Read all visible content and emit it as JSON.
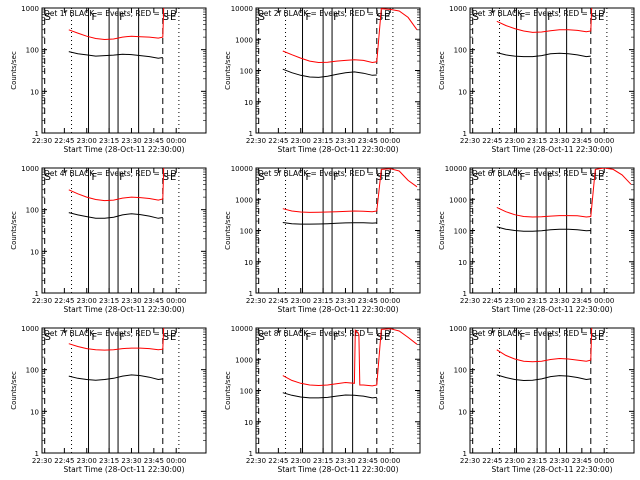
{
  "chart_data": {
    "type": "line",
    "x_tick_labels": [
      "22:30",
      "22:45",
      "23:00",
      "23:15",
      "23:30",
      "23:45",
      "00:00"
    ],
    "x_range_hours": [
      0,
      1.833
    ],
    "y_scale": "log",
    "y_range": [
      1,
      1000
    ],
    "y_tick_labels": [
      "1",
      "10",
      "100",
      "1000"
    ],
    "ylabel": "Counts/sec",
    "xlabel": "Start Time (28-Oct-11 22:30:00)",
    "series_colors": {
      "events": "#000000",
      "lld": "#ff0000"
    },
    "vline_styles": {
      "dashed": "#000000",
      "dotted": "#000000",
      "solid": "#000000"
    },
    "panels": [
      {
        "title": "Det 1f BLACK = Events, RED = LLD",
        "ylim": [
          1,
          1000
        ],
        "marks": {
          "S": 0.03,
          "F": [
            0.62,
            0.93
          ],
          "S2": 1.35,
          "E": 1.43
        },
        "vlines_dashed": [
          0.03,
          1.35
        ],
        "vlines_dotted": [
          0.33,
          1.53
        ],
        "vlines_solid": [
          0.52,
          0.75,
          0.85,
          1.08
        ],
        "events": {
          "x": [
            0.3,
            0.4,
            0.5,
            0.6,
            0.7,
            0.8,
            0.9,
            1.0,
            1.1,
            1.2,
            1.3,
            1.35
          ],
          "y": [
            90,
            80,
            75,
            70,
            72,
            74,
            78,
            76,
            72,
            68,
            62,
            65
          ]
        },
        "lld": {
          "x": [
            0.3,
            0.4,
            0.5,
            0.6,
            0.7,
            0.8,
            0.9,
            1.0,
            1.1,
            1.2,
            1.3,
            1.35,
            1.36
          ],
          "y": [
            300,
            250,
            210,
            185,
            175,
            180,
            200,
            210,
            205,
            200,
            190,
            200,
            1000
          ]
        }
      },
      {
        "title": "Det 2f BLACK = Events, RED = LLD",
        "ylim": [
          1,
          10000
        ],
        "marks": {
          "S": 0.03,
          "F": [
            0.62,
            0.93
          ],
          "S2": 1.35,
          "E": 1.43
        },
        "vlines_dashed": [
          0.03,
          1.35
        ],
        "vlines_dotted": [
          0.33,
          1.53
        ],
        "vlines_solid": [
          0.52,
          0.75,
          0.85,
          1.08
        ],
        "events": {
          "x": [
            0.3,
            0.4,
            0.5,
            0.6,
            0.7,
            0.8,
            0.9,
            1.0,
            1.1,
            1.2,
            1.3,
            1.35
          ],
          "y": [
            110,
            85,
            70,
            62,
            60,
            65,
            75,
            85,
            90,
            82,
            70,
            72
          ]
        },
        "lld": {
          "x": [
            0.3,
            0.4,
            0.5,
            0.6,
            0.7,
            0.8,
            0.9,
            1.0,
            1.1,
            1.2,
            1.3,
            1.35,
            1.4,
            1.5,
            1.6,
            1.7,
            1.8
          ],
          "y": [
            420,
            320,
            250,
            200,
            180,
            185,
            200,
            210,
            220,
            210,
            180,
            190,
            9500,
            9000,
            8000,
            5000,
            2000
          ]
        }
      },
      {
        "title": "Det 3f BLACK = Events, RED = LLD",
        "ylim": [
          1,
          1000
        ],
        "marks": {
          "S": 0.03,
          "F": [
            0.62,
            0.93
          ],
          "S2": 1.35,
          "E": 1.43
        },
        "vlines_dashed": [
          0.03,
          1.35
        ],
        "vlines_dotted": [
          0.33,
          1.53
        ],
        "vlines_solid": [
          0.52,
          0.75,
          0.85,
          1.08
        ],
        "events": {
          "x": [
            0.3,
            0.4,
            0.5,
            0.6,
            0.7,
            0.8,
            0.9,
            1.0,
            1.1,
            1.2,
            1.3,
            1.35
          ],
          "y": [
            85,
            75,
            70,
            68,
            68,
            72,
            80,
            82,
            80,
            75,
            68,
            70
          ]
        },
        "lld": {
          "x": [
            0.3,
            0.4,
            0.5,
            0.6,
            0.7,
            0.8,
            0.9,
            1.0,
            1.1,
            1.2,
            1.3,
            1.35,
            1.36
          ],
          "y": [
            480,
            380,
            320,
            280,
            260,
            265,
            285,
            300,
            300,
            290,
            270,
            280,
            1000
          ]
        }
      },
      {
        "title": "Det 4f BLACK = Events, RED = LLD",
        "ylim": [
          1,
          1000
        ],
        "marks": {
          "S": 0.03,
          "F": [
            0.62,
            0.93
          ],
          "S2": 1.35,
          "E": 1.43
        },
        "vlines_dashed": [
          0.03,
          1.35
        ],
        "vlines_dotted": [
          0.33,
          1.53
        ],
        "vlines_solid": [
          0.52,
          0.75,
          0.85,
          1.08
        ],
        "events": {
          "x": [
            0.3,
            0.4,
            0.5,
            0.6,
            0.7,
            0.8,
            0.9,
            1.0,
            1.1,
            1.2,
            1.3,
            1.35
          ],
          "y": [
            85,
            75,
            68,
            62,
            62,
            66,
            75,
            80,
            76,
            70,
            62,
            65
          ]
        },
        "lld": {
          "x": [
            0.3,
            0.4,
            0.5,
            0.6,
            0.7,
            0.8,
            0.9,
            1.0,
            1.1,
            1.2,
            1.3,
            1.35,
            1.36
          ],
          "y": [
            300,
            240,
            200,
            175,
            165,
            170,
            190,
            200,
            195,
            185,
            170,
            180,
            1000
          ]
        }
      },
      {
        "title": "Det 5f BLACK = Events, RED = LLD",
        "ylim": [
          1,
          10000
        ],
        "marks": {
          "S": 0.03,
          "F": [
            0.62,
            0.93
          ],
          "S2": 1.35,
          "E": 1.43
        },
        "vlines_dashed": [
          0.03,
          1.35
        ],
        "vlines_dotted": [
          0.33,
          1.53
        ],
        "vlines_solid": [
          0.52,
          0.75,
          0.85,
          1.08
        ],
        "events": {
          "x": [
            0.3,
            0.4,
            0.5,
            0.6,
            0.7,
            0.8,
            0.9,
            1.0,
            1.1,
            1.2,
            1.3,
            1.35
          ],
          "y": [
            180,
            165,
            160,
            160,
            162,
            165,
            170,
            175,
            178,
            176,
            172,
            175
          ]
        },
        "lld": {
          "x": [
            0.3,
            0.4,
            0.5,
            0.6,
            0.7,
            0.8,
            0.9,
            1.0,
            1.1,
            1.2,
            1.3,
            1.35,
            1.4,
            1.5,
            1.6,
            1.7,
            1.8
          ],
          "y": [
            500,
            420,
            390,
            380,
            385,
            390,
            400,
            410,
            420,
            415,
            400,
            420,
            9000,
            9500,
            8000,
            4000,
            2500
          ]
        }
      },
      {
        "title": "Det 6f BLACK = Events, RED = LLD",
        "ylim": [
          1,
          10000
        ],
        "marks": {
          "S": 0.03,
          "F": [
            0.62,
            0.93
          ],
          "S2": 1.35,
          "E": 1.43
        },
        "vlines_dashed": [
          0.03,
          1.35
        ],
        "vlines_dotted": [
          0.33,
          1.53
        ],
        "vlines_solid": [
          0.52,
          0.75,
          0.85,
          1.08
        ],
        "events": {
          "x": [
            0.3,
            0.4,
            0.5,
            0.6,
            0.7,
            0.8,
            0.9,
            1.0,
            1.1,
            1.2,
            1.3,
            1.35
          ],
          "y": [
            130,
            110,
            100,
            95,
            95,
            98,
            105,
            110,
            110,
            105,
            98,
            100
          ]
        },
        "lld": {
          "x": [
            0.3,
            0.4,
            0.5,
            0.6,
            0.7,
            0.8,
            0.9,
            1.0,
            1.1,
            1.2,
            1.3,
            1.35,
            1.4,
            1.5,
            1.6,
            1.7,
            1.8
          ],
          "y": [
            550,
            400,
            320,
            280,
            270,
            275,
            290,
            300,
            300,
            295,
            270,
            280,
            9000,
            10000,
            9000,
            6000,
            3000
          ]
        }
      },
      {
        "title": "Det 7f BLACK = Events, RED = LLD",
        "ylim": [
          1,
          1000
        ],
        "marks": {
          "S": 0.03,
          "F": [
            0.62,
            0.93
          ],
          "S2": 1.35,
          "E": 1.43
        },
        "vlines_dashed": [
          0.03,
          1.35
        ],
        "vlines_dotted": [
          0.33,
          1.53
        ],
        "vlines_solid": [
          0.52,
          0.75,
          0.85,
          1.08
        ],
        "events": {
          "x": [
            0.3,
            0.4,
            0.5,
            0.6,
            0.7,
            0.8,
            0.9,
            1.0,
            1.1,
            1.2,
            1.3,
            1.35
          ],
          "y": [
            70,
            62,
            58,
            56,
            58,
            62,
            70,
            75,
            72,
            66,
            58,
            60
          ]
        },
        "lld": {
          "x": [
            0.3,
            0.4,
            0.5,
            0.6,
            0.7,
            0.8,
            0.9,
            1.0,
            1.1,
            1.2,
            1.3,
            1.35,
            1.36
          ],
          "y": [
            420,
            360,
            320,
            300,
            295,
            300,
            320,
            330,
            330,
            320,
            300,
            310,
            1000
          ]
        }
      },
      {
        "title": "Det 8f BLACK = Events, RED = LLD",
        "ylim": [
          1,
          10000
        ],
        "marks": {
          "S": 0.03,
          "F": [
            0.62,
            0.93
          ],
          "S2": 1.35,
          "E": 1.43
        },
        "vlines_dashed": [
          0.03,
          1.35
        ],
        "vlines_dotted": [
          0.33,
          1.53
        ],
        "vlines_solid": [
          0.52,
          0.75,
          0.85,
          1.08
        ],
        "events": {
          "x": [
            0.3,
            0.4,
            0.5,
            0.6,
            0.7,
            0.8,
            0.9,
            1.0,
            1.1,
            1.15,
            1.2,
            1.25,
            1.3,
            1.35
          ],
          "y": [
            85,
            70,
            62,
            58,
            58,
            60,
            66,
            72,
            70,
            68,
            66,
            62,
            58,
            60
          ]
        },
        "lld": {
          "x": [
            0.3,
            0.4,
            0.5,
            0.6,
            0.7,
            0.8,
            0.9,
            1.0,
            1.1,
            1.11,
            1.12,
            1.14,
            1.15,
            1.16,
            1.2,
            1.3,
            1.35,
            1.4,
            1.5,
            1.6,
            1.7,
            1.8
          ],
          "y": [
            300,
            210,
            170,
            150,
            145,
            150,
            165,
            180,
            170,
            8500,
            8000,
            7000,
            6000,
            150,
            150,
            140,
            150,
            9000,
            9500,
            8000,
            5000,
            3000
          ]
        }
      },
      {
        "title": "Det 9f BLACK = Events, RED = LLD",
        "ylim": [
          1,
          1000
        ],
        "marks": {
          "S": 0.03,
          "F": [
            0.62,
            0.93
          ],
          "S2": 1.35,
          "E": 1.43
        },
        "vlines_dashed": [
          0.03,
          1.35
        ],
        "vlines_dotted": [
          0.33,
          1.53
        ],
        "vlines_solid": [
          0.52,
          0.75,
          0.85,
          1.08
        ],
        "events": {
          "x": [
            0.3,
            0.4,
            0.5,
            0.6,
            0.7,
            0.8,
            0.9,
            1.0,
            1.1,
            1.2,
            1.3,
            1.35
          ],
          "y": [
            75,
            65,
            58,
            55,
            56,
            60,
            68,
            72,
            70,
            65,
            58,
            60
          ]
        },
        "lld": {
          "x": [
            0.3,
            0.4,
            0.5,
            0.6,
            0.7,
            0.8,
            0.9,
            1.0,
            1.1,
            1.2,
            1.3,
            1.35,
            1.36
          ],
          "y": [
            300,
            220,
            180,
            160,
            155,
            160,
            175,
            185,
            180,
            170,
            160,
            170,
            1000
          ]
        }
      }
    ]
  }
}
